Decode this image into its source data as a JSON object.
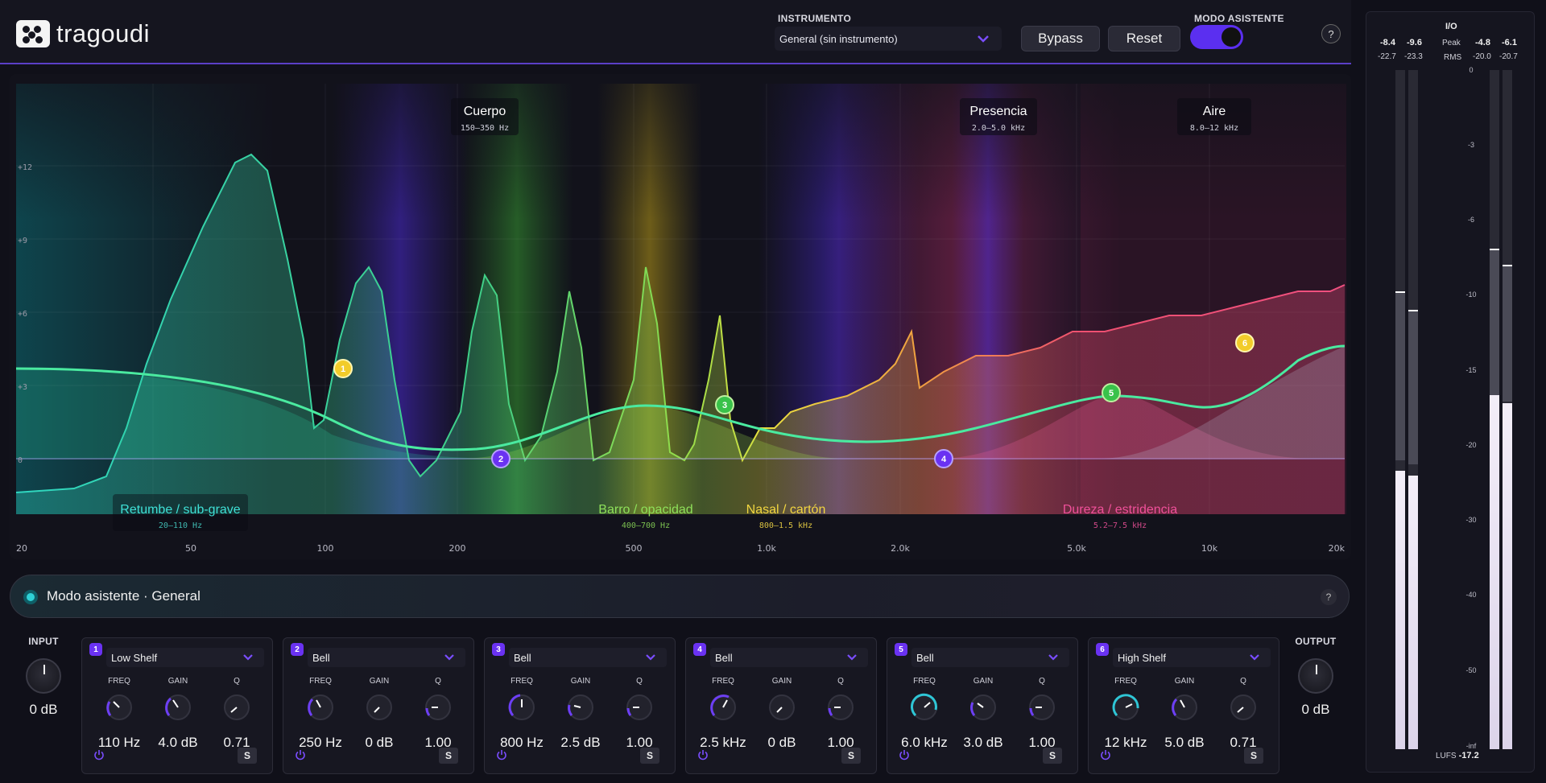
{
  "app": {
    "logo_text": "tragoudi"
  },
  "header": {
    "instrument_label": "INSTRUMENTO",
    "instrument_value": "General (sin instrumento)",
    "bypass_label": "Bypass",
    "reset_label": "Reset",
    "assistant_label": "MODO ASISTENTE",
    "assistant_on": true,
    "help_label": "?"
  },
  "eq_display": {
    "db_ticks": [
      "+12",
      "+9",
      "+6",
      "+3",
      "0"
    ],
    "freq_ticks": [
      "20",
      "50",
      "100",
      "200",
      "500",
      "1.0k",
      "2.0k",
      "5.0k",
      "10k",
      "20k"
    ],
    "top_regions": [
      {
        "name": "Cuerpo",
        "range": "150–350 Hz"
      },
      {
        "name": "Presencia",
        "range": "2.0–5.0 kHz"
      },
      {
        "name": "Aire",
        "range": "8.0–12 kHz"
      }
    ],
    "bottom_regions": [
      {
        "name": "Retumbe / sub-grave",
        "range": "20–110 Hz",
        "color": "#3fe0d6"
      },
      {
        "name": "Barro / opacidad",
        "range": "400–700 Hz",
        "color": "#8ee05a"
      },
      {
        "name": "Nasal / cartón",
        "range": "800–1.5 kHz",
        "color": "#f2d640"
      },
      {
        "name": "Dureza / estridencia",
        "range": "5.2–7.5 kHz",
        "color": "#f0509a"
      }
    ],
    "node_labels": [
      "1",
      "2",
      "3",
      "4",
      "5",
      "6"
    ]
  },
  "assistant_bar": {
    "text": "Modo asistente · General",
    "help": "?"
  },
  "input": {
    "label": "INPUT",
    "value": "0 dB"
  },
  "output": {
    "label": "OUTPUT",
    "value": "0 dB"
  },
  "band_param_labels": {
    "freq": "FREQ",
    "gain": "GAIN",
    "q": "Q",
    "solo": "S"
  },
  "bands": [
    {
      "num": "1",
      "type": "Low Shelf",
      "freq": "110 Hz",
      "gain": "4.0 dB",
      "q": "0.71"
    },
    {
      "num": "2",
      "type": "Bell",
      "freq": "250 Hz",
      "gain": "0 dB",
      "q": "1.00"
    },
    {
      "num": "3",
      "type": "Bell",
      "freq": "800 Hz",
      "gain": "2.5 dB",
      "q": "1.00"
    },
    {
      "num": "4",
      "type": "Bell",
      "freq": "2.5 kHz",
      "gain": "0 dB",
      "q": "1.00"
    },
    {
      "num": "5",
      "type": "Bell",
      "freq": "6.0 kHz",
      "gain": "3.0 dB",
      "q": "1.00"
    },
    {
      "num": "6",
      "type": "High Shelf",
      "freq": "12 kHz",
      "gain": "5.0 dB",
      "q": "0.71"
    }
  ],
  "meter": {
    "title": "I/O",
    "in_peak_l": "-8.4",
    "in_peak_r": "-9.6",
    "in_rms_l": "-22.7",
    "in_rms_r": "-23.3",
    "out_peak_l": "-4.8",
    "out_peak_r": "-6.1",
    "out_rms_l": "-20.0",
    "out_rms_r": "-20.7",
    "peak_label": "Peak",
    "rms_label": "RMS",
    "scale": [
      "0",
      "-3",
      "-6",
      "-10",
      "-15",
      "-20",
      "-30",
      "-40",
      "-50",
      "-inf"
    ],
    "lufs_label": "LUFS",
    "lufs_value": "-17.2"
  }
}
